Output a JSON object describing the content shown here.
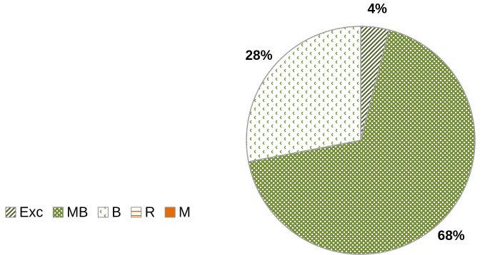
{
  "chart_data": {
    "type": "pie",
    "categories": [
      "Exc",
      "MB",
      "B",
      "R",
      "M"
    ],
    "values": [
      4,
      68,
      28,
      0,
      0
    ],
    "value_labels": [
      "4%",
      "68%",
      "28%",
      null,
      null
    ],
    "colors": [
      "#4f6228",
      "#77933c",
      "#77933c",
      "#e36c09",
      "#e36c09"
    ],
    "patterns": [
      "diagonal",
      "cross",
      "dots",
      "hlines",
      "solid"
    ],
    "legend": "bottom-left"
  }
}
